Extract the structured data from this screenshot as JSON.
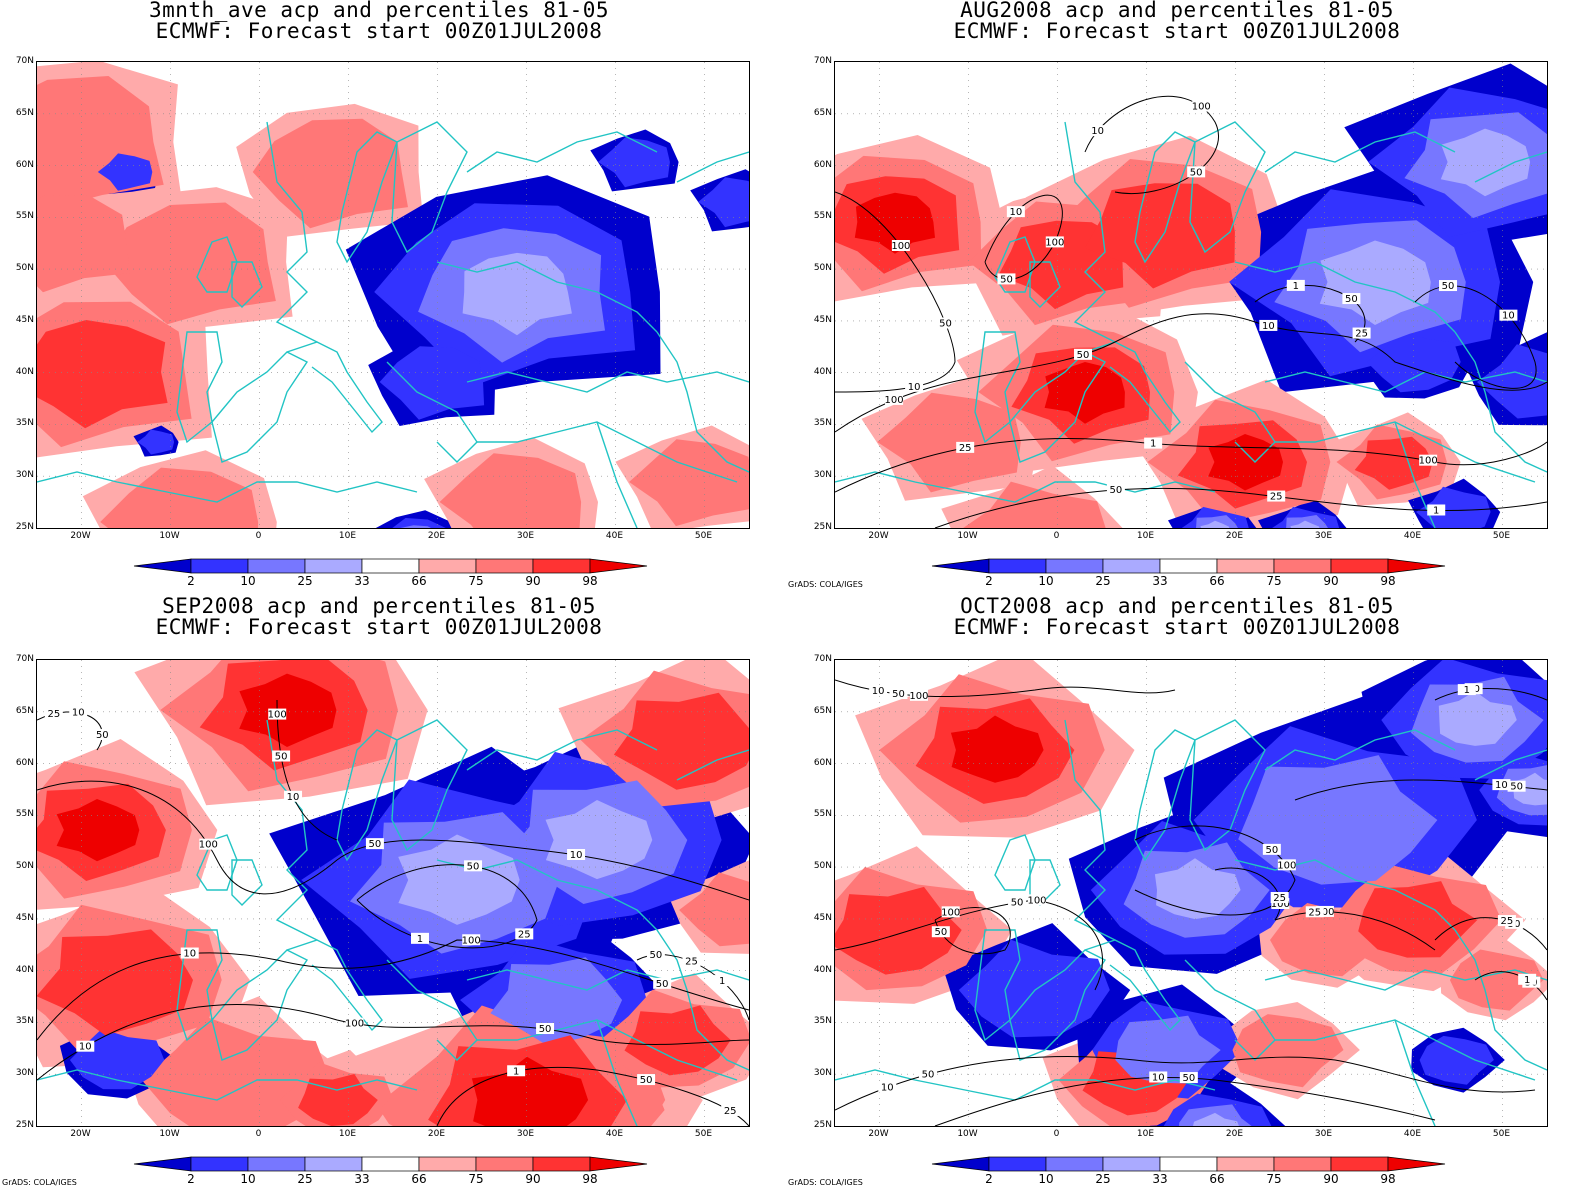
{
  "panels": [
    {
      "id": "3mnth",
      "title_line1": "3mnth_ave acp and percentiles 81-05",
      "title_line2": "ECMWF: Forecast start 00Z01JUL2008",
      "credit": "",
      "contour_labels": []
    },
    {
      "id": "aug",
      "title_line1": "AUG2008 acp and percentiles 81-05",
      "title_line2": "ECMWF: Forecast start 00Z01JUL2008",
      "credit": "GrADS: COLA/IGES",
      "contour_labels": [
        "100",
        "100",
        "100",
        "100",
        "100",
        "50",
        "50",
        "50",
        "50",
        "50",
        "50",
        "50",
        "25",
        "25",
        "25",
        "10",
        "10",
        "10",
        "10",
        "10",
        "1",
        "1",
        "1"
      ]
    },
    {
      "id": "sep",
      "title_line1": "SEP2008 acp and percentiles 81-05",
      "title_line2": "ECMWF: Forecast start 00Z01JUL2008",
      "credit": "GrADS: COLA/IGES",
      "contour_labels": [
        "100",
        "100",
        "100",
        "100",
        "50",
        "50",
        "50",
        "50",
        "50",
        "50",
        "50",
        "50",
        "25",
        "25",
        "25",
        "25",
        "10",
        "10",
        "10",
        "10",
        "10",
        "1",
        "1",
        "1"
      ]
    },
    {
      "id": "oct",
      "title_line1": "OCT2008 acp and percentiles 81-05",
      "title_line2": "ECMWF: Forecast start 00Z01JUL2008",
      "credit": "GrADS: COLA/IGES",
      "contour_labels": [
        "100",
        "100",
        "100",
        "100",
        "100",
        "100",
        "50",
        "50",
        "50",
        "50",
        "50",
        "50",
        "50",
        "50",
        "50",
        "50",
        "25",
        "25",
        "25",
        "10",
        "10",
        "10",
        "1",
        "1",
        "10"
      ]
    }
  ],
  "map_axes": {
    "lat_labels": [
      "70N",
      "65N",
      "60N",
      "55N",
      "50N",
      "45N",
      "40N",
      "35N",
      "30N",
      "25N"
    ],
    "lon_labels": [
      "20W",
      "10W",
      "0",
      "10E",
      "20E",
      "30E",
      "40E",
      "50E"
    ],
    "lat_range": [
      25,
      70
    ],
    "lon_range": [
      -25,
      55
    ]
  },
  "colorbar": {
    "labels": [
      "2",
      "10",
      "25",
      "33",
      "66",
      "75",
      "90",
      "98"
    ],
    "colors": [
      "#0000cc",
      "#3333ff",
      "#7777ff",
      "#aaaaff",
      "#ffffff",
      "#ffaaaa",
      "#ff7777",
      "#ff3333",
      "#ee0000"
    ]
  },
  "colors": {
    "coastline": "#22c4c4",
    "contour": "#000000"
  }
}
